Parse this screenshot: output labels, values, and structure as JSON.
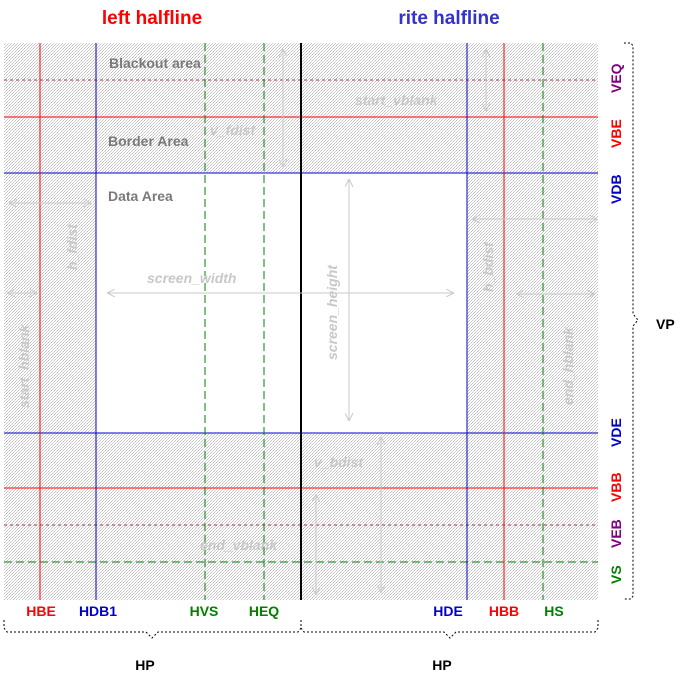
{
  "headers": {
    "left": "left halfline",
    "right": "rite halfline",
    "left_color": "#ff0000",
    "right_color": "#3333cc"
  },
  "areas": {
    "blackout": "Blackout area",
    "border": "Border Area",
    "data": "Data Area"
  },
  "distances": {
    "start_vblank": "start_vblank",
    "v_fdist": "v_fdist",
    "h_fdist": "h_fdist",
    "start_hblank": "start_hblank",
    "screen_width": "screen_width",
    "screen_height": "screen_height",
    "h_bdist": "h_bdist",
    "end_hblank": "end_hblank",
    "v_bdist": "v_bdist",
    "end_vblank": "end_vblank"
  },
  "vertical_edges": {
    "VEQ": "VEQ",
    "VBE": "VBE",
    "VDB": "VDB",
    "VDE": "VDE",
    "VBB": "VBB",
    "VEB": "VEB",
    "VS": "VS"
  },
  "horizontal_edges": {
    "HBE": "HBE",
    "HDB1": "HDB1",
    "HVS": "HVS",
    "HEQ": "HEQ",
    "HDE": "HDE",
    "HBB": "HBB",
    "HS": "HS"
  },
  "period_labels": {
    "VP": "VP",
    "HP_left": "HP",
    "HP_right": "HP"
  },
  "colors": {
    "blank_red": "#ff0000",
    "data_blue": "#0000cc",
    "sync_green": "#008000",
    "equalize_purple": "#800080",
    "hatch": "#e6e6e6",
    "dist_gray": "#c8c8c8",
    "area_gray": "#7a7a7a"
  }
}
